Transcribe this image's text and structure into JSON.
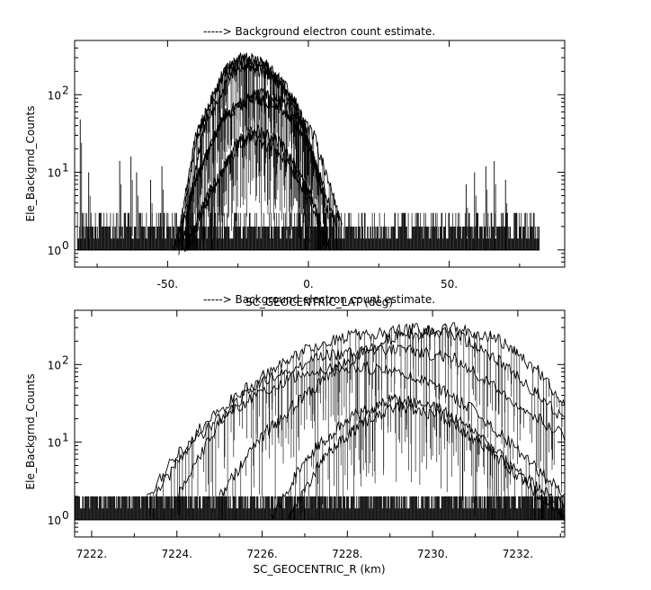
{
  "chart_data": [
    {
      "type": "line",
      "title": "-----> Background electron count estimate.",
      "xlabel": "SC_GEOCENTRIC_LAT (deg)",
      "ylabel": "Ele_Backgrnd_Counts",
      "xlim": [
        -83,
        91
      ],
      "ylim": [
        0.6,
        500
      ],
      "yscale": "log",
      "grid": false,
      "xticks": [
        -50,
        0,
        50
      ],
      "xtick_labels": [
        "-50.",
        "0.",
        "50."
      ],
      "yticks": [
        1,
        10,
        100
      ],
      "ytick_labels": [
        "10",
        "10",
        "10"
      ],
      "ytick_exponents": [
        "0",
        "1",
        "2"
      ],
      "data_x_range": [
        -82,
        82
      ],
      "noise_floor_max": 3,
      "series": [
        {
          "peak_x": -23,
          "peak_y": 320,
          "halfwidth": 30,
          "points": [
            [
              -47,
              1
            ],
            [
              -40,
              30
            ],
            [
              -30,
              200
            ],
            [
              -23,
              320
            ],
            [
              -15,
              250
            ],
            [
              -5,
              90
            ],
            [
              6,
              5
            ]
          ]
        },
        {
          "peak_x": -24,
          "peak_y": 280,
          "halfwidth": 30,
          "points": [
            [
              -46,
              1
            ],
            [
              -40,
              25
            ],
            [
              -30,
              190
            ],
            [
              -24,
              280
            ],
            [
              -15,
              220
            ],
            [
              -5,
              80
            ],
            [
              6,
              4
            ]
          ]
        },
        {
          "peak_x": -22,
          "peak_y": 240,
          "halfwidth": 29,
          "points": [
            [
              -45,
              1
            ],
            [
              -38,
              30
            ],
            [
              -28,
              180
            ],
            [
              -22,
              240
            ],
            [
              -12,
              170
            ],
            [
              -2,
              50
            ],
            [
              7,
              3
            ]
          ]
        },
        {
          "peak_x": -18,
          "peak_y": 105,
          "halfwidth": 32,
          "points": [
            [
              -48,
              1
            ],
            [
              -40,
              8
            ],
            [
              -30,
              50
            ],
            [
              -18,
              105
            ],
            [
              -8,
              80
            ],
            [
              2,
              30
            ],
            [
              12,
              2
            ]
          ]
        },
        {
          "peak_x": -20,
          "peak_y": 95,
          "halfwidth": 31,
          "points": [
            [
              -47,
              1
            ],
            [
              -40,
              8
            ],
            [
              -30,
              55
            ],
            [
              -20,
              95
            ],
            [
              -10,
              70
            ],
            [
              0,
              25
            ],
            [
              10,
              2
            ]
          ]
        },
        {
          "peak_x": -19,
          "peak_y": 35,
          "halfwidth": 28,
          "points": [
            [
              -43,
              1
            ],
            [
              -35,
              5
            ],
            [
              -25,
              25
            ],
            [
              -19,
              35
            ],
            [
              -10,
              25
            ],
            [
              0,
              6
            ],
            [
              8,
              1
            ]
          ]
        },
        {
          "peak_x": -21,
          "peak_y": 28,
          "halfwidth": 27,
          "points": [
            [
              -44,
              1
            ],
            [
              -35,
              6
            ],
            [
              -25,
              22
            ],
            [
              -21,
              28
            ],
            [
              -10,
              18
            ],
            [
              0,
              5
            ],
            [
              7,
              1
            ]
          ]
        }
      ],
      "spikes": [
        {
          "x": -81,
          "y": 48
        },
        {
          "x": -78,
          "y": 10
        },
        {
          "x": -67,
          "y": 14
        },
        {
          "x": -63,
          "y": 16
        },
        {
          "x": -61,
          "y": 10
        },
        {
          "x": -56,
          "y": 8
        },
        {
          "x": -52,
          "y": 12
        },
        {
          "x": 56,
          "y": 7
        },
        {
          "x": 59,
          "y": 10
        },
        {
          "x": 63,
          "y": 12
        },
        {
          "x": 66,
          "y": 14
        },
        {
          "x": 70,
          "y": 8
        }
      ]
    },
    {
      "type": "line",
      "title": "-----> Background electron count estimate.",
      "xlabel": "SC_GEOCENTRIC_R (km)",
      "ylabel": "Ele_Backgrnd_Counts",
      "xlim": [
        7221.6,
        7233.1
      ],
      "ylim": [
        0.6,
        500
      ],
      "yscale": "log",
      "grid": false,
      "xticks": [
        7222,
        7224,
        7226,
        7228,
        7230,
        7232
      ],
      "xtick_labels": [
        "7222.",
        "7224.",
        "7226.",
        "7228.",
        "7230.",
        "7232."
      ],
      "yticks": [
        1,
        10,
        100
      ],
      "ytick_labels": [
        "10",
        "10",
        "10"
      ],
      "ytick_exponents": [
        "0",
        "1",
        "2"
      ],
      "data_x_range": [
        7221.6,
        7233.1
      ],
      "noise_floor_max": 2,
      "series": [
        {
          "peak_x": 7230.4,
          "peak_y": 300,
          "points": [
            [
              7225.0,
              2
            ],
            [
              7226.0,
              12
            ],
            [
              7227.0,
              40
            ],
            [
              7228.0,
              110
            ],
            [
              7229.0,
              220
            ],
            [
              7230.4,
              300
            ],
            [
              7231.5,
              220
            ],
            [
              7232.5,
              80
            ],
            [
              7233.1,
              30
            ]
          ]
        },
        {
          "peak_x": 7229.5,
          "peak_y": 290,
          "points": [
            [
              7224.0,
              2
            ],
            [
              7225.0,
              18
            ],
            [
              7226.0,
              70
            ],
            [
              7227.0,
              150
            ],
            [
              7228.0,
              230
            ],
            [
              7229.5,
              290
            ],
            [
              7230.5,
              250
            ],
            [
              7231.5,
              120
            ],
            [
              7232.5,
              40
            ],
            [
              7233.1,
              18
            ]
          ]
        },
        {
          "peak_x": 7229.2,
          "peak_y": 160,
          "points": [
            [
              7223.5,
              2
            ],
            [
              7224.5,
              14
            ],
            [
              7225.5,
              45
            ],
            [
              7226.5,
              80
            ],
            [
              7227.5,
              130
            ],
            [
              7229.2,
              160
            ],
            [
              7230.5,
              120
            ],
            [
              7231.5,
              50
            ],
            [
              7232.5,
              20
            ],
            [
              7233.1,
              12
            ]
          ]
        },
        {
          "peak_x": 7228.0,
          "peak_y": 95,
          "points": [
            [
              7223.3,
              2
            ],
            [
              7224.0,
              7
            ],
            [
              7225.0,
              20
            ],
            [
              7226.0,
              45
            ],
            [
              7227.0,
              80
            ],
            [
              7228.0,
              95
            ],
            [
              7229.0,
              85
            ],
            [
              7230.0,
              55
            ],
            [
              7231.0,
              25
            ],
            [
              7232.0,
              8
            ],
            [
              7233.1,
              2
            ]
          ]
        },
        {
          "peak_x": 7229.0,
          "peak_y": 35,
          "points": [
            [
              7226.2,
              1
            ],
            [
              7227.0,
              6
            ],
            [
              7228.0,
              20
            ],
            [
              7229.0,
              35
            ],
            [
              7230.0,
              30
            ],
            [
              7231.0,
              14
            ],
            [
              7232.0,
              4
            ],
            [
              7233.1,
              1.5
            ]
          ]
        },
        {
          "peak_x": 7229.2,
          "peak_y": 28,
          "points": [
            [
              7226.6,
              1
            ],
            [
              7227.5,
              7
            ],
            [
              7228.5,
              20
            ],
            [
              7229.2,
              28
            ],
            [
              7230.2,
              22
            ],
            [
              7231.2,
              9
            ],
            [
              7232.2,
              3
            ],
            [
              7233.1,
              1
            ]
          ]
        }
      ],
      "spikes": []
    }
  ]
}
